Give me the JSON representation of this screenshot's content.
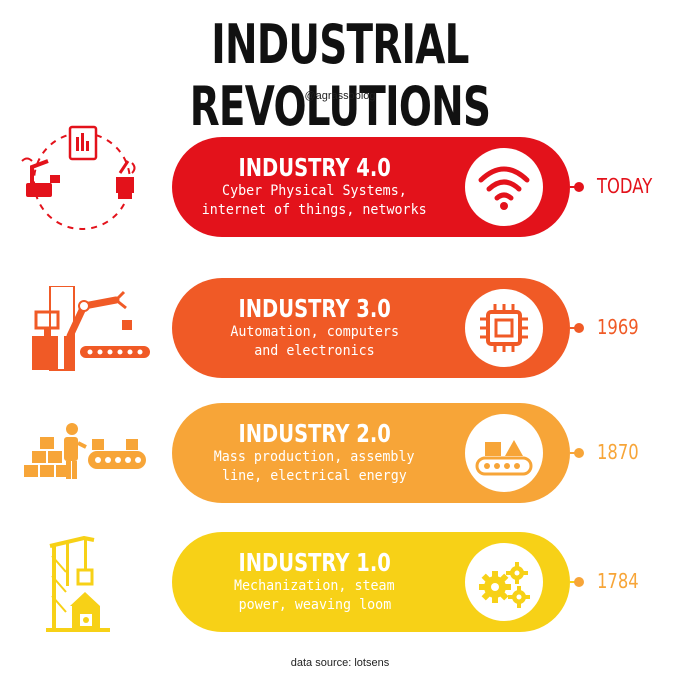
{
  "title": "INDUSTRIAL REVOLUTIONS",
  "handle": "@agrassoblog",
  "source": "data source: lotsens",
  "stages": [
    {
      "title": "INDUSTRY 4.0",
      "desc_line1": "Cyber Physical Systems,",
      "desc_line2": "internet of things, networks",
      "year": "TODAY",
      "color": "#e3121b",
      "icon": "wifi-icon",
      "illustration": "connected-factory-illustration"
    },
    {
      "title": "INDUSTRY 3.0",
      "desc_line1": "Automation, computers",
      "desc_line2": "and electronics",
      "year": "1969",
      "color": "#f05a26",
      "icon": "chip-icon",
      "illustration": "robot-arm-illustration"
    },
    {
      "title": "INDUSTRY 2.0",
      "desc_line1": "Mass production, assembly",
      "desc_line2": "line, electrical energy",
      "year": "1870",
      "color": "#f7a538",
      "icon": "conveyor-icon",
      "illustration": "assembly-worker-illustration"
    },
    {
      "title": "INDUSTRY 1.0",
      "desc_line1": "Mechanization, steam",
      "desc_line2": "power, weaving loom",
      "year": "1784",
      "color": "#f7d117",
      "icon": "gears-icon",
      "illustration": "pump-jack-illustration"
    }
  ]
}
